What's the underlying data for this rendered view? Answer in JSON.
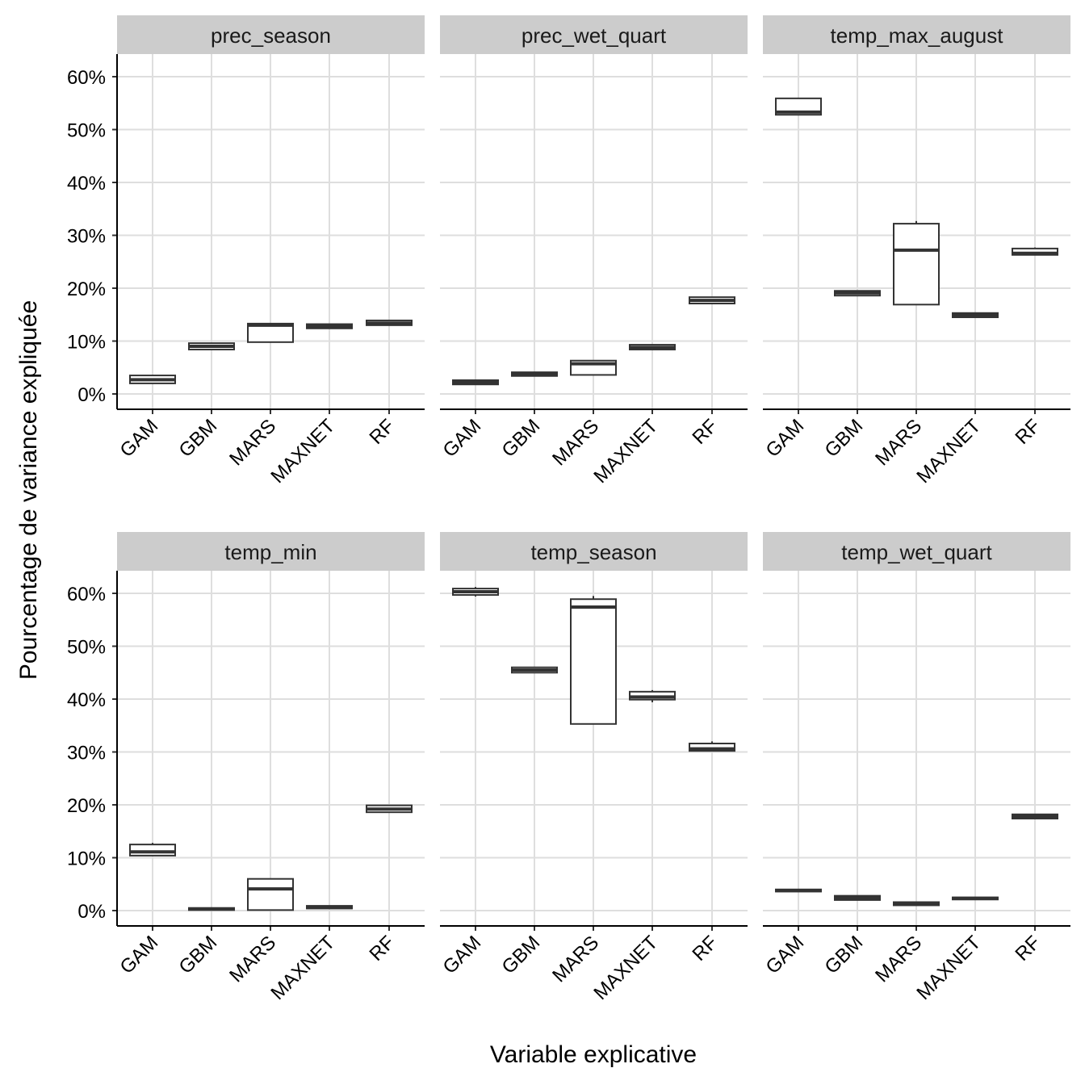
{
  "chart_data": {
    "type": "boxplot",
    "xlabel": "Variable explicative",
    "ylabel": "Pourcentage de variance expliquée",
    "ylim": [
      0,
      60
    ],
    "y_ticks": [
      "0%",
      "10%",
      "20%",
      "30%",
      "40%",
      "50%",
      "60%"
    ],
    "y_tick_values": [
      0,
      10,
      20,
      30,
      40,
      50,
      60
    ],
    "grid": true,
    "categories": [
      "GAM",
      "GBM",
      "MARS",
      "MAXNET",
      "RF"
    ],
    "panels": [
      {
        "title": "prec_season",
        "boxes": [
          {
            "low": 2.0,
            "q1": 2.0,
            "median": 2.7,
            "q3": 3.5,
            "high": 3.5
          },
          {
            "low": 8.4,
            "q1": 8.4,
            "median": 9.0,
            "q3": 9.6,
            "high": 9.6
          },
          {
            "low": 9.8,
            "q1": 9.8,
            "median": 13.0,
            "q3": 13.3,
            "high": 13.3
          },
          {
            "low": 12.4,
            "q1": 12.4,
            "median": 12.8,
            "q3": 13.2,
            "high": 13.3
          },
          {
            "low": 13.0,
            "q1": 13.0,
            "median": 13.4,
            "q3": 13.9,
            "high": 13.9
          }
        ]
      },
      {
        "title": "prec_wet_quart",
        "boxes": [
          {
            "low": 1.8,
            "q1": 1.8,
            "median": 2.2,
            "q3": 2.6,
            "high": 2.6
          },
          {
            "low": 3.4,
            "q1": 3.4,
            "median": 3.7,
            "q3": 4.1,
            "high": 4.1
          },
          {
            "low": 3.6,
            "q1": 3.6,
            "median": 5.7,
            "q3": 6.3,
            "high": 6.3
          },
          {
            "low": 8.4,
            "q1": 8.4,
            "median": 8.8,
            "q3": 9.3,
            "high": 9.3
          },
          {
            "low": 17.1,
            "q1": 17.1,
            "median": 17.7,
            "q3": 18.3,
            "high": 18.3
          }
        ]
      },
      {
        "title": "temp_max_august",
        "boxes": [
          {
            "low": 52.8,
            "q1": 52.8,
            "median": 53.3,
            "q3": 55.9,
            "high": 55.9
          },
          {
            "low": 18.6,
            "q1": 18.6,
            "median": 19.1,
            "q3": 19.5,
            "high": 19.5
          },
          {
            "low": 16.9,
            "q1": 16.9,
            "median": 27.2,
            "q3": 32.2,
            "high": 32.7
          },
          {
            "low": 14.4,
            "q1": 14.5,
            "median": 14.9,
            "q3": 15.3,
            "high": 15.3
          },
          {
            "low": 26.3,
            "q1": 26.3,
            "median": 26.6,
            "q3": 27.5,
            "high": 27.7
          }
        ]
      },
      {
        "title": "temp_min",
        "boxes": [
          {
            "low": 10.4,
            "q1": 10.4,
            "median": 11.1,
            "q3": 12.5,
            "high": 12.8
          },
          {
            "low": 0.1,
            "q1": 0.1,
            "median": 0.3,
            "q3": 0.5,
            "high": 0.5
          },
          {
            "low": 0.1,
            "q1": 0.1,
            "median": 4.1,
            "q3": 6.0,
            "high": 6.0
          },
          {
            "low": 0.4,
            "q1": 0.4,
            "median": 0.6,
            "q3": 0.9,
            "high": 0.9
          },
          {
            "low": 18.6,
            "q1": 18.6,
            "median": 19.2,
            "q3": 19.9,
            "high": 19.9
          }
        ]
      },
      {
        "title": "temp_season",
        "boxes": [
          {
            "low": 59.4,
            "q1": 59.7,
            "median": 60.3,
            "q3": 60.9,
            "high": 61.2
          },
          {
            "low": 45.0,
            "q1": 45.0,
            "median": 45.5,
            "q3": 46.0,
            "high": 46.0
          },
          {
            "low": 35.3,
            "q1": 35.3,
            "median": 57.4,
            "q3": 58.9,
            "high": 59.5
          },
          {
            "low": 39.4,
            "q1": 39.9,
            "median": 40.4,
            "q3": 41.4,
            "high": 41.7
          },
          {
            "low": 30.2,
            "q1": 30.2,
            "median": 30.6,
            "q3": 31.6,
            "high": 32.0
          }
        ]
      },
      {
        "title": "temp_wet_quart",
        "boxes": [
          {
            "low": 3.6,
            "q1": 3.6,
            "median": 3.8,
            "q3": 4.0,
            "high": 4.0
          },
          {
            "low": 2.0,
            "q1": 2.0,
            "median": 2.4,
            "q3": 2.8,
            "high": 2.8
          },
          {
            "low": 1.0,
            "q1": 1.0,
            "median": 1.3,
            "q3": 1.6,
            "high": 1.6
          },
          {
            "low": 2.1,
            "q1": 2.1,
            "median": 2.3,
            "q3": 2.5,
            "high": 2.5
          },
          {
            "low": 17.4,
            "q1": 17.4,
            "median": 17.8,
            "q3": 18.2,
            "high": 18.2
          }
        ]
      }
    ],
    "colors": {
      "box_line": "#333333",
      "box_fill": "#ffffff",
      "strip": "#cccccc",
      "grid": "#dedede"
    }
  }
}
